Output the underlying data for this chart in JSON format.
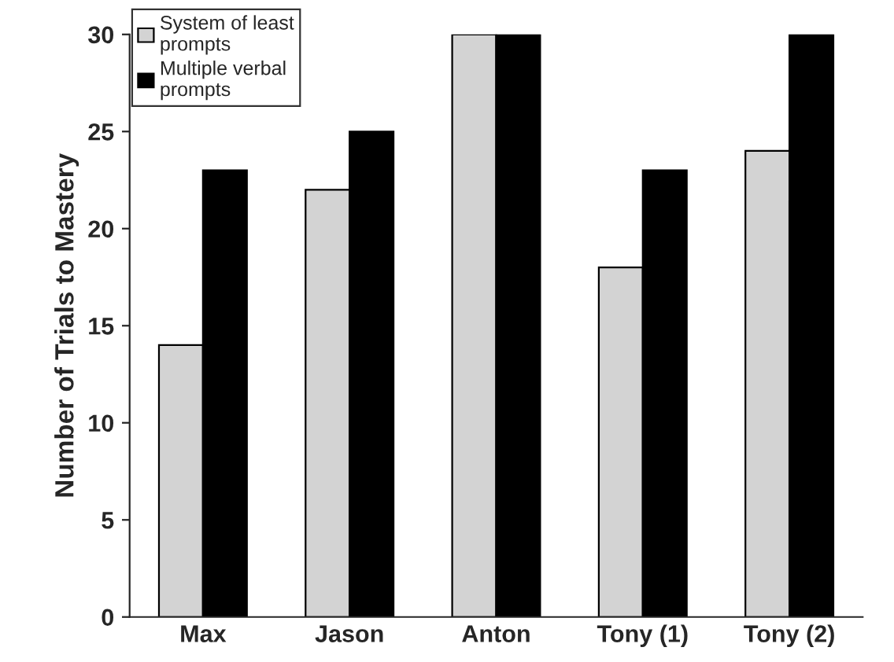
{
  "chart_data": {
    "type": "bar",
    "ylabel": "Number of Trials to Mastery",
    "categories": [
      "Max",
      "Jason",
      "Anton",
      "Tony (1)",
      "Tony (2)"
    ],
    "series": [
      {
        "name": "System of least\nprompts",
        "color": "#d3d3d3",
        "values": [
          14,
          22,
          30,
          18,
          24
        ]
      },
      {
        "name": "Multiple verbal\nprompts",
        "color": "#000000",
        "values": [
          23,
          25,
          30,
          23,
          30
        ]
      }
    ],
    "ylim": [
      0,
      30
    ],
    "yticks": [
      0,
      5,
      10,
      15,
      20,
      25,
      30
    ],
    "grid": false,
    "legend": "top left"
  }
}
